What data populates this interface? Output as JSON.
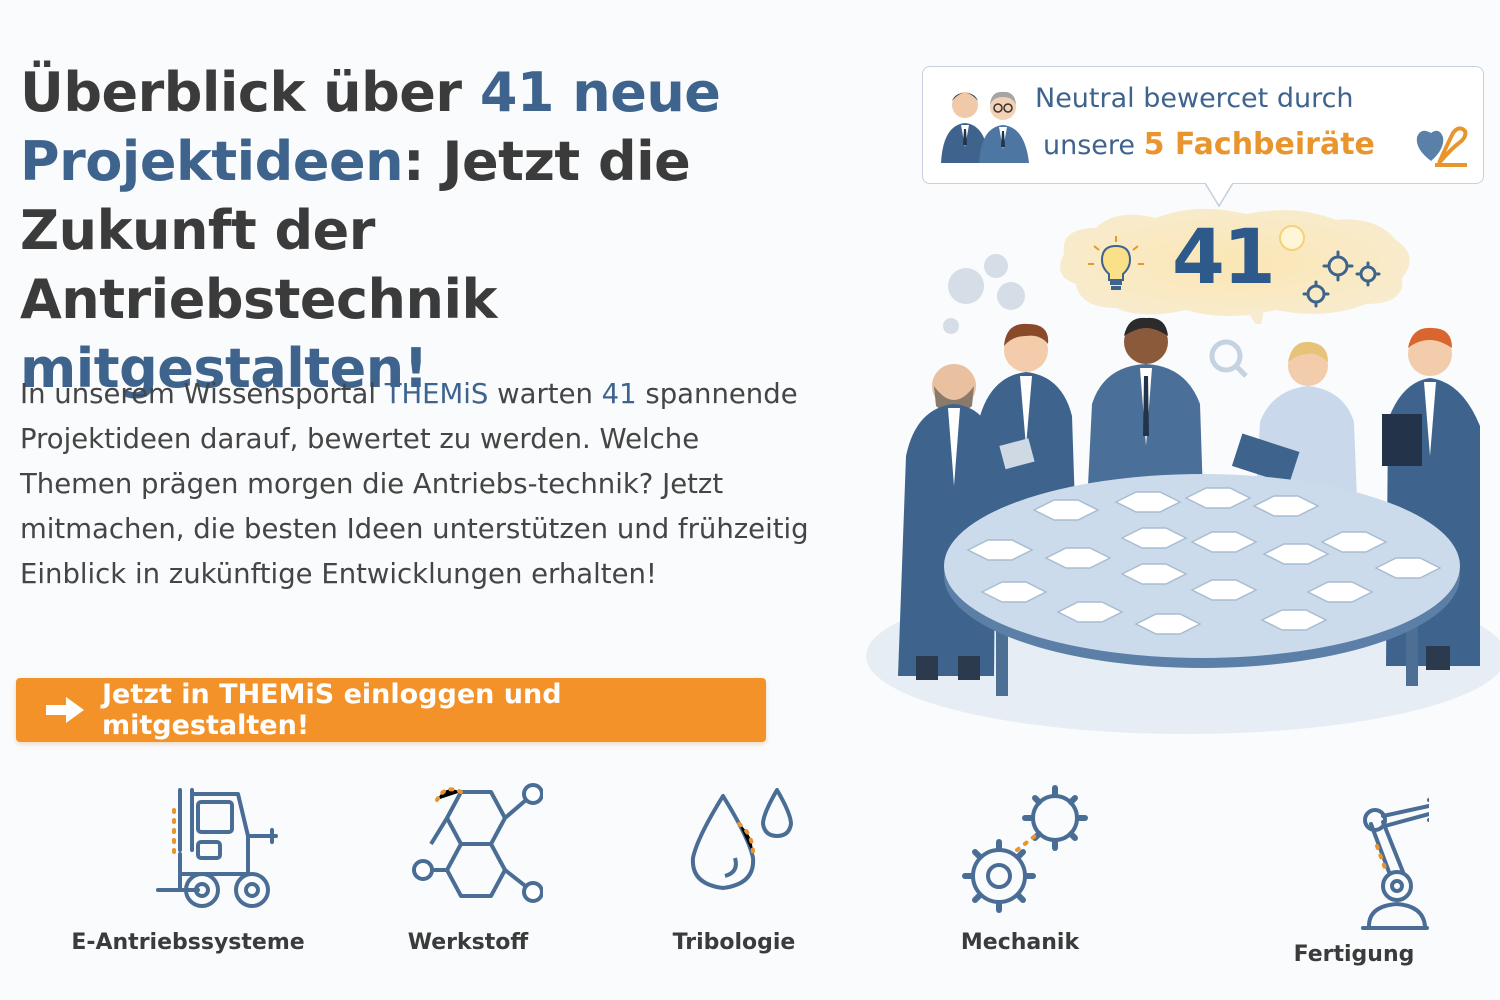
{
  "headline": {
    "part1": "Überblick über ",
    "part2": "41 neue Projektideen",
    "part3": ": Jetzt die Zukunft der Antriebstechnik ",
    "part4": "mitgestalten!"
  },
  "intro": {
    "part1": "In unserem Wissensportal ",
    "portal_name": "THEMiS",
    "part2": " warten ",
    "count": "41",
    "part3": " spannende Projektideen darauf, bewertet zu werden. Welche Themen prägen morgen die Antriebs-technik? Jetzt mitmachen, die besten Ideen unterstützen und frühzeitig Einblick in zukünftige Entwicklungen erhalten!"
  },
  "cta": {
    "label": "Jetzt in THEMiS einloggen und mitgestalten!"
  },
  "callout": {
    "line1": "Neutral bewercet durch",
    "line2_prefix": "unsere ",
    "line2_highlight": "5 Fachbeiräte"
  },
  "badge_number": "41",
  "categories": [
    {
      "label": "E-Antriebssysteme",
      "icon": "forklift-plug-icon"
    },
    {
      "label": "Werkstoff",
      "icon": "molecule-icon"
    },
    {
      "label": "Tribologie",
      "icon": "oil-drops-icon"
    },
    {
      "label": "Mechanik",
      "icon": "gears-icon"
    },
    {
      "label": "Fertigung",
      "icon": "robot-arm-icon"
    }
  ],
  "colors": {
    "accent_blue": "#3e648e",
    "cta_orange": "#f4922a",
    "icon_blue": "#4a6d96",
    "icon_orange": "#e8952e"
  }
}
